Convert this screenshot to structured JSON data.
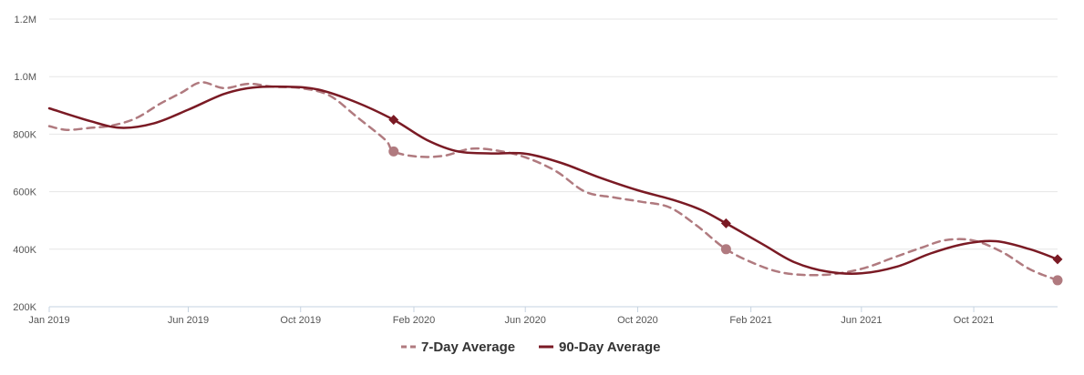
{
  "chart_data": {
    "type": "line",
    "title": "",
    "xlabel": "",
    "ylabel": "",
    "x_range": [
      "2019-01-01",
      "2021-12-31"
    ],
    "ylim": [
      200000,
      1200000
    ],
    "yticks": [
      {
        "value": 200000,
        "label": "200K"
      },
      {
        "value": 400000,
        "label": "400K"
      },
      {
        "value": 600000,
        "label": "600K"
      },
      {
        "value": 800000,
        "label": "800K"
      },
      {
        "value": 1000000,
        "label": "1.0M"
      },
      {
        "value": 1200000,
        "label": "1.2M"
      }
    ],
    "xticks": [
      {
        "date": "2019-01-01",
        "label": "Jan 2019"
      },
      {
        "date": "2019-06-01",
        "label": "Jun 2019"
      },
      {
        "date": "2019-10-01",
        "label": "Oct 2019"
      },
      {
        "date": "2020-02-01",
        "label": "Feb 2020"
      },
      {
        "date": "2020-06-01",
        "label": "Jun 2020"
      },
      {
        "date": "2020-10-01",
        "label": "Oct 2020"
      },
      {
        "date": "2021-02-01",
        "label": "Feb 2021"
      },
      {
        "date": "2021-06-01",
        "label": "Jun 2021"
      },
      {
        "date": "2021-10-01",
        "label": "Oct 2021"
      }
    ],
    "grid": true,
    "legend_position": "bottom-center",
    "series": [
      {
        "name": "7-Day Average",
        "color": "#b07a7f",
        "style": "dashed",
        "marker": "circle",
        "points": [
          {
            "x": "2019-01-01",
            "y": 828000
          },
          {
            "x": "2019-01-20",
            "y": 815000
          },
          {
            "x": "2019-02-15",
            "y": 822000
          },
          {
            "x": "2019-03-10",
            "y": 830000
          },
          {
            "x": "2019-04-05",
            "y": 855000
          },
          {
            "x": "2019-05-01",
            "y": 905000
          },
          {
            "x": "2019-05-25",
            "y": 945000
          },
          {
            "x": "2019-06-15",
            "y": 980000
          },
          {
            "x": "2019-07-10",
            "y": 960000
          },
          {
            "x": "2019-08-05",
            "y": 975000
          },
          {
            "x": "2019-09-01",
            "y": 965000
          },
          {
            "x": "2019-10-01",
            "y": 960000
          },
          {
            "x": "2019-11-01",
            "y": 935000
          },
          {
            "x": "2019-12-01",
            "y": 860000
          },
          {
            "x": "2020-01-01",
            "y": 780000
          },
          {
            "x": "2020-01-10",
            "y": 740000
          },
          {
            "x": "2020-02-05",
            "y": 722000
          },
          {
            "x": "2020-03-05",
            "y": 725000
          },
          {
            "x": "2020-04-05",
            "y": 750000
          },
          {
            "x": "2020-05-10",
            "y": 738000
          },
          {
            "x": "2020-06-05",
            "y": 715000
          },
          {
            "x": "2020-07-05",
            "y": 670000
          },
          {
            "x": "2020-08-05",
            "y": 600000
          },
          {
            "x": "2020-09-05",
            "y": 580000
          },
          {
            "x": "2020-10-05",
            "y": 565000
          },
          {
            "x": "2020-11-05",
            "y": 545000
          },
          {
            "x": "2020-12-05",
            "y": 480000
          },
          {
            "x": "2021-01-05",
            "y": 400000
          },
          {
            "x": "2021-02-05",
            "y": 350000
          },
          {
            "x": "2021-03-05",
            "y": 320000
          },
          {
            "x": "2021-04-05",
            "y": 310000
          },
          {
            "x": "2021-05-05",
            "y": 315000
          },
          {
            "x": "2021-06-05",
            "y": 335000
          },
          {
            "x": "2021-07-05",
            "y": 370000
          },
          {
            "x": "2021-08-05",
            "y": 405000
          },
          {
            "x": "2021-09-01",
            "y": 432000
          },
          {
            "x": "2021-10-01",
            "y": 430000
          },
          {
            "x": "2021-11-01",
            "y": 390000
          },
          {
            "x": "2021-12-01",
            "y": 330000
          },
          {
            "x": "2021-12-31",
            "y": 292000
          }
        ],
        "markers": [
          {
            "x": "2020-01-10",
            "y": 740000
          },
          {
            "x": "2021-01-05",
            "y": 400000
          },
          {
            "x": "2021-12-31",
            "y": 292000
          }
        ]
      },
      {
        "name": "90-Day Average",
        "color": "#7a1a24",
        "style": "solid",
        "marker": "diamond",
        "points": [
          {
            "x": "2019-01-01",
            "y": 890000
          },
          {
            "x": "2019-02-15",
            "y": 845000
          },
          {
            "x": "2019-03-20",
            "y": 822000
          },
          {
            "x": "2019-04-25",
            "y": 838000
          },
          {
            "x": "2019-06-01",
            "y": 885000
          },
          {
            "x": "2019-07-10",
            "y": 940000
          },
          {
            "x": "2019-08-10",
            "y": 962000
          },
          {
            "x": "2019-09-15",
            "y": 965000
          },
          {
            "x": "2019-10-20",
            "y": 955000
          },
          {
            "x": "2019-12-01",
            "y": 910000
          },
          {
            "x": "2020-01-10",
            "y": 850000
          },
          {
            "x": "2020-02-15",
            "y": 780000
          },
          {
            "x": "2020-03-20",
            "y": 740000
          },
          {
            "x": "2020-04-25",
            "y": 733000
          },
          {
            "x": "2020-06-01",
            "y": 732000
          },
          {
            "x": "2020-07-10",
            "y": 700000
          },
          {
            "x": "2020-08-20",
            "y": 650000
          },
          {
            "x": "2020-10-01",
            "y": 605000
          },
          {
            "x": "2020-11-10",
            "y": 570000
          },
          {
            "x": "2020-12-10",
            "y": 535000
          },
          {
            "x": "2021-01-05",
            "y": 490000
          },
          {
            "x": "2021-02-15",
            "y": 415000
          },
          {
            "x": "2021-03-20",
            "y": 355000
          },
          {
            "x": "2021-04-25",
            "y": 322000
          },
          {
            "x": "2021-06-01",
            "y": 316000
          },
          {
            "x": "2021-07-10",
            "y": 340000
          },
          {
            "x": "2021-08-15",
            "y": 385000
          },
          {
            "x": "2021-09-20",
            "y": 418000
          },
          {
            "x": "2021-10-25",
            "y": 428000
          },
          {
            "x": "2021-12-01",
            "y": 400000
          },
          {
            "x": "2021-12-31",
            "y": 365000
          }
        ],
        "markers": [
          {
            "x": "2020-01-10",
            "y": 850000
          },
          {
            "x": "2021-01-05",
            "y": 490000
          },
          {
            "x": "2021-12-31",
            "y": 365000
          }
        ]
      }
    ]
  },
  "legend": {
    "items": [
      {
        "label": "7-Day Average"
      },
      {
        "label": "90-Day Average"
      }
    ]
  }
}
